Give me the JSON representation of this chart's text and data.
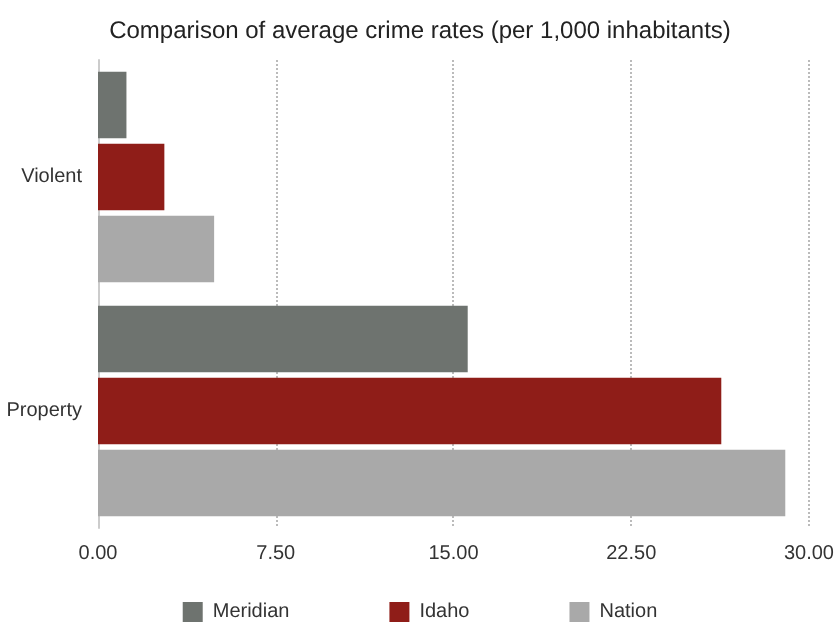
{
  "chart_data": {
    "type": "bar",
    "orientation": "horizontal",
    "title": "Comparison of average crime rates (per 1,000 inhabitants)",
    "categories": [
      "Violent",
      "Property"
    ],
    "series": [
      {
        "name": "Meridian",
        "color": "#6e736f",
        "values": [
          1.2,
          15.6
        ]
      },
      {
        "name": "Idaho",
        "color": "#8f1d18",
        "values": [
          2.8,
          26.3
        ]
      },
      {
        "name": "Nation",
        "color": "#a9a9a9",
        "values": [
          4.9,
          29.0
        ]
      }
    ],
    "xlim": [
      0,
      30
    ],
    "xticks": [
      {
        "value": 0,
        "label": "0.00"
      },
      {
        "value": 7.5,
        "label": "7.50"
      },
      {
        "value": 15,
        "label": "15.00"
      },
      {
        "value": 22.5,
        "label": "22.50"
      },
      {
        "value": 30,
        "label": "30.00"
      }
    ],
    "grid": "x",
    "legend": "bottom"
  }
}
